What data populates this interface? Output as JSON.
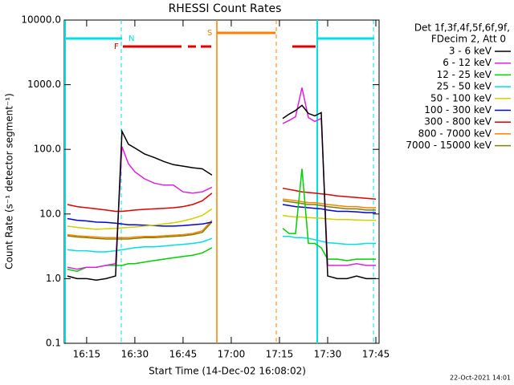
{
  "chart_data": {
    "type": "line",
    "title": "RHESSI Count Rates",
    "x_label": "Start Time (14-Dec-02 16:08:02)",
    "y_label": "Count Rate (s⁻¹ detector segment⁻¹)",
    "footer": "22-Oct-2021 14:01",
    "legend_title": [
      "Det 1f,3f,4f,5f,6f,9f,",
      "FDecim 2, Att 0"
    ],
    "annotations": {
      "n": "N",
      "f": "F",
      "s": "S"
    },
    "log_y": true,
    "xlim": [
      8.03,
      106
    ],
    "ylim": [
      0.1,
      10000
    ],
    "xticks": [
      {
        "value": 15,
        "label": "16:15"
      },
      {
        "value": 30,
        "label": "16:30"
      },
      {
        "value": 45,
        "label": "16:45"
      },
      {
        "value": 60,
        "label": "17:00"
      },
      {
        "value": 75,
        "label": "17:15"
      },
      {
        "value": 90,
        "label": "17:30"
      },
      {
        "value": 105,
        "label": "17:45"
      }
    ],
    "yticks": [
      0.1,
      {
        "value": 1,
        "label": "1.0"
      },
      {
        "value": 10,
        "label": "10.0"
      },
      {
        "value": 100,
        "label": "100.0"
      },
      {
        "value": 1000,
        "label": "1000.0"
      },
      {
        "value": 10000,
        "label": "10000.0"
      }
    ],
    "x": [
      9,
      12,
      15,
      18,
      21,
      24,
      26,
      28,
      30,
      33,
      36,
      39,
      42,
      45,
      48,
      51,
      54,
      65,
      76,
      78,
      80,
      82,
      84,
      86,
      88,
      90,
      93,
      96,
      99,
      102,
      105
    ],
    "series": [
      {
        "name": "3 - 6 keV",
        "color": "#000000",
        "values": [
          1.1,
          1.0,
          1.0,
          0.95,
          1.0,
          1.1,
          190,
          120,
          105,
          85,
          75,
          65,
          58,
          55,
          52,
          50,
          40,
          null,
          300,
          350,
          400,
          480,
          360,
          330,
          370,
          1.1,
          1.0,
          1.0,
          1.1,
          1.0,
          1.0
        ]
      },
      {
        "name": "6 - 12 keV",
        "color": "#e020e0",
        "values": [
          1.5,
          1.4,
          1.5,
          1.5,
          1.6,
          1.7,
          110,
          60,
          45,
          35,
          30,
          28,
          28,
          22,
          21,
          22,
          26,
          null,
          250,
          280,
          320,
          900,
          310,
          270,
          300,
          1.6,
          1.6,
          1.6,
          1.7,
          1.6,
          1.6
        ]
      },
      {
        "name": "12 - 25 keV",
        "color": "#00d000",
        "values": [
          1.4,
          1.3,
          1.5,
          1.5,
          1.6,
          1.6,
          1.6,
          1.7,
          1.7,
          1.8,
          1.9,
          2.0,
          2.1,
          2.2,
          2.3,
          2.5,
          3.0,
          null,
          6,
          5,
          5,
          50,
          3.5,
          3.5,
          3.0,
          2.0,
          2.0,
          1.9,
          2.0,
          2.0,
          2.0
        ]
      },
      {
        "name": "25 - 50 keV",
        "color": "#00e0e0",
        "values": [
          2.8,
          2.7,
          2.7,
          2.6,
          2.6,
          2.7,
          2.8,
          2.9,
          3.0,
          3.1,
          3.1,
          3.2,
          3.3,
          3.4,
          3.5,
          3.7,
          4.2,
          null,
          4.5,
          4.5,
          4.3,
          4.3,
          4.2,
          4.0,
          3.8,
          3.6,
          3.5,
          3.4,
          3.4,
          3.5,
          3.5
        ]
      },
      {
        "name": "50 - 100 keV",
        "color": "#d0d000",
        "values": [
          6.5,
          6.2,
          6.0,
          5.8,
          5.9,
          6.0,
          6.1,
          6.2,
          6.3,
          6.5,
          6.7,
          7.0,
          7.3,
          7.8,
          8.5,
          9.5,
          12,
          null,
          9.5,
          9.2,
          9.0,
          9.0,
          8.8,
          8.7,
          8.6,
          8.4,
          8.2,
          8.2,
          8.1,
          8.0,
          8.0
        ]
      },
      {
        "name": "100 - 300 keV",
        "color": "#0000e0",
        "values": [
          8.5,
          8.0,
          7.8,
          7.5,
          7.4,
          7.2,
          7.0,
          6.8,
          6.8,
          6.7,
          6.6,
          6.5,
          6.5,
          6.6,
          6.8,
          7.0,
          7.5,
          null,
          14,
          13.5,
          13,
          12.8,
          12.5,
          12.2,
          12,
          11.5,
          11,
          11,
          10.8,
          10.5,
          10.5
        ]
      },
      {
        "name": "300 - 800 keV",
        "color": "#e00000",
        "values": [
          14,
          13,
          12.5,
          12,
          11.5,
          11,
          11,
          11.2,
          11.5,
          11.8,
          12,
          12.2,
          12.5,
          13,
          14,
          16,
          21,
          null,
          25,
          24,
          23,
          22,
          21.5,
          21,
          20.5,
          20,
          19,
          18.5,
          18,
          17.5,
          17
        ]
      },
      {
        "name": "800 - 7000 keV",
        "color": "#ff8000",
        "values": [
          4.8,
          4.6,
          4.5,
          4.4,
          4.3,
          4.3,
          4.3,
          4.3,
          4.4,
          4.5,
          4.5,
          4.6,
          4.7,
          4.8,
          5.0,
          5.5,
          8,
          null,
          17,
          16.5,
          16,
          15.5,
          15,
          15,
          14.5,
          14,
          13.5,
          13,
          13,
          12.5,
          12.5
        ]
      },
      {
        "name": "7000 - 15000 keV",
        "color": "#808000",
        "values": [
          4.6,
          4.4,
          4.3,
          4.2,
          4.1,
          4.1,
          4.1,
          4.1,
          4.2,
          4.3,
          4.3,
          4.4,
          4.5,
          4.6,
          4.8,
          5.2,
          7.5,
          null,
          16,
          15.5,
          15,
          14.5,
          14,
          14,
          13.5,
          13,
          12.5,
          12,
          12,
          11.5,
          11.5
        ]
      }
    ]
  }
}
